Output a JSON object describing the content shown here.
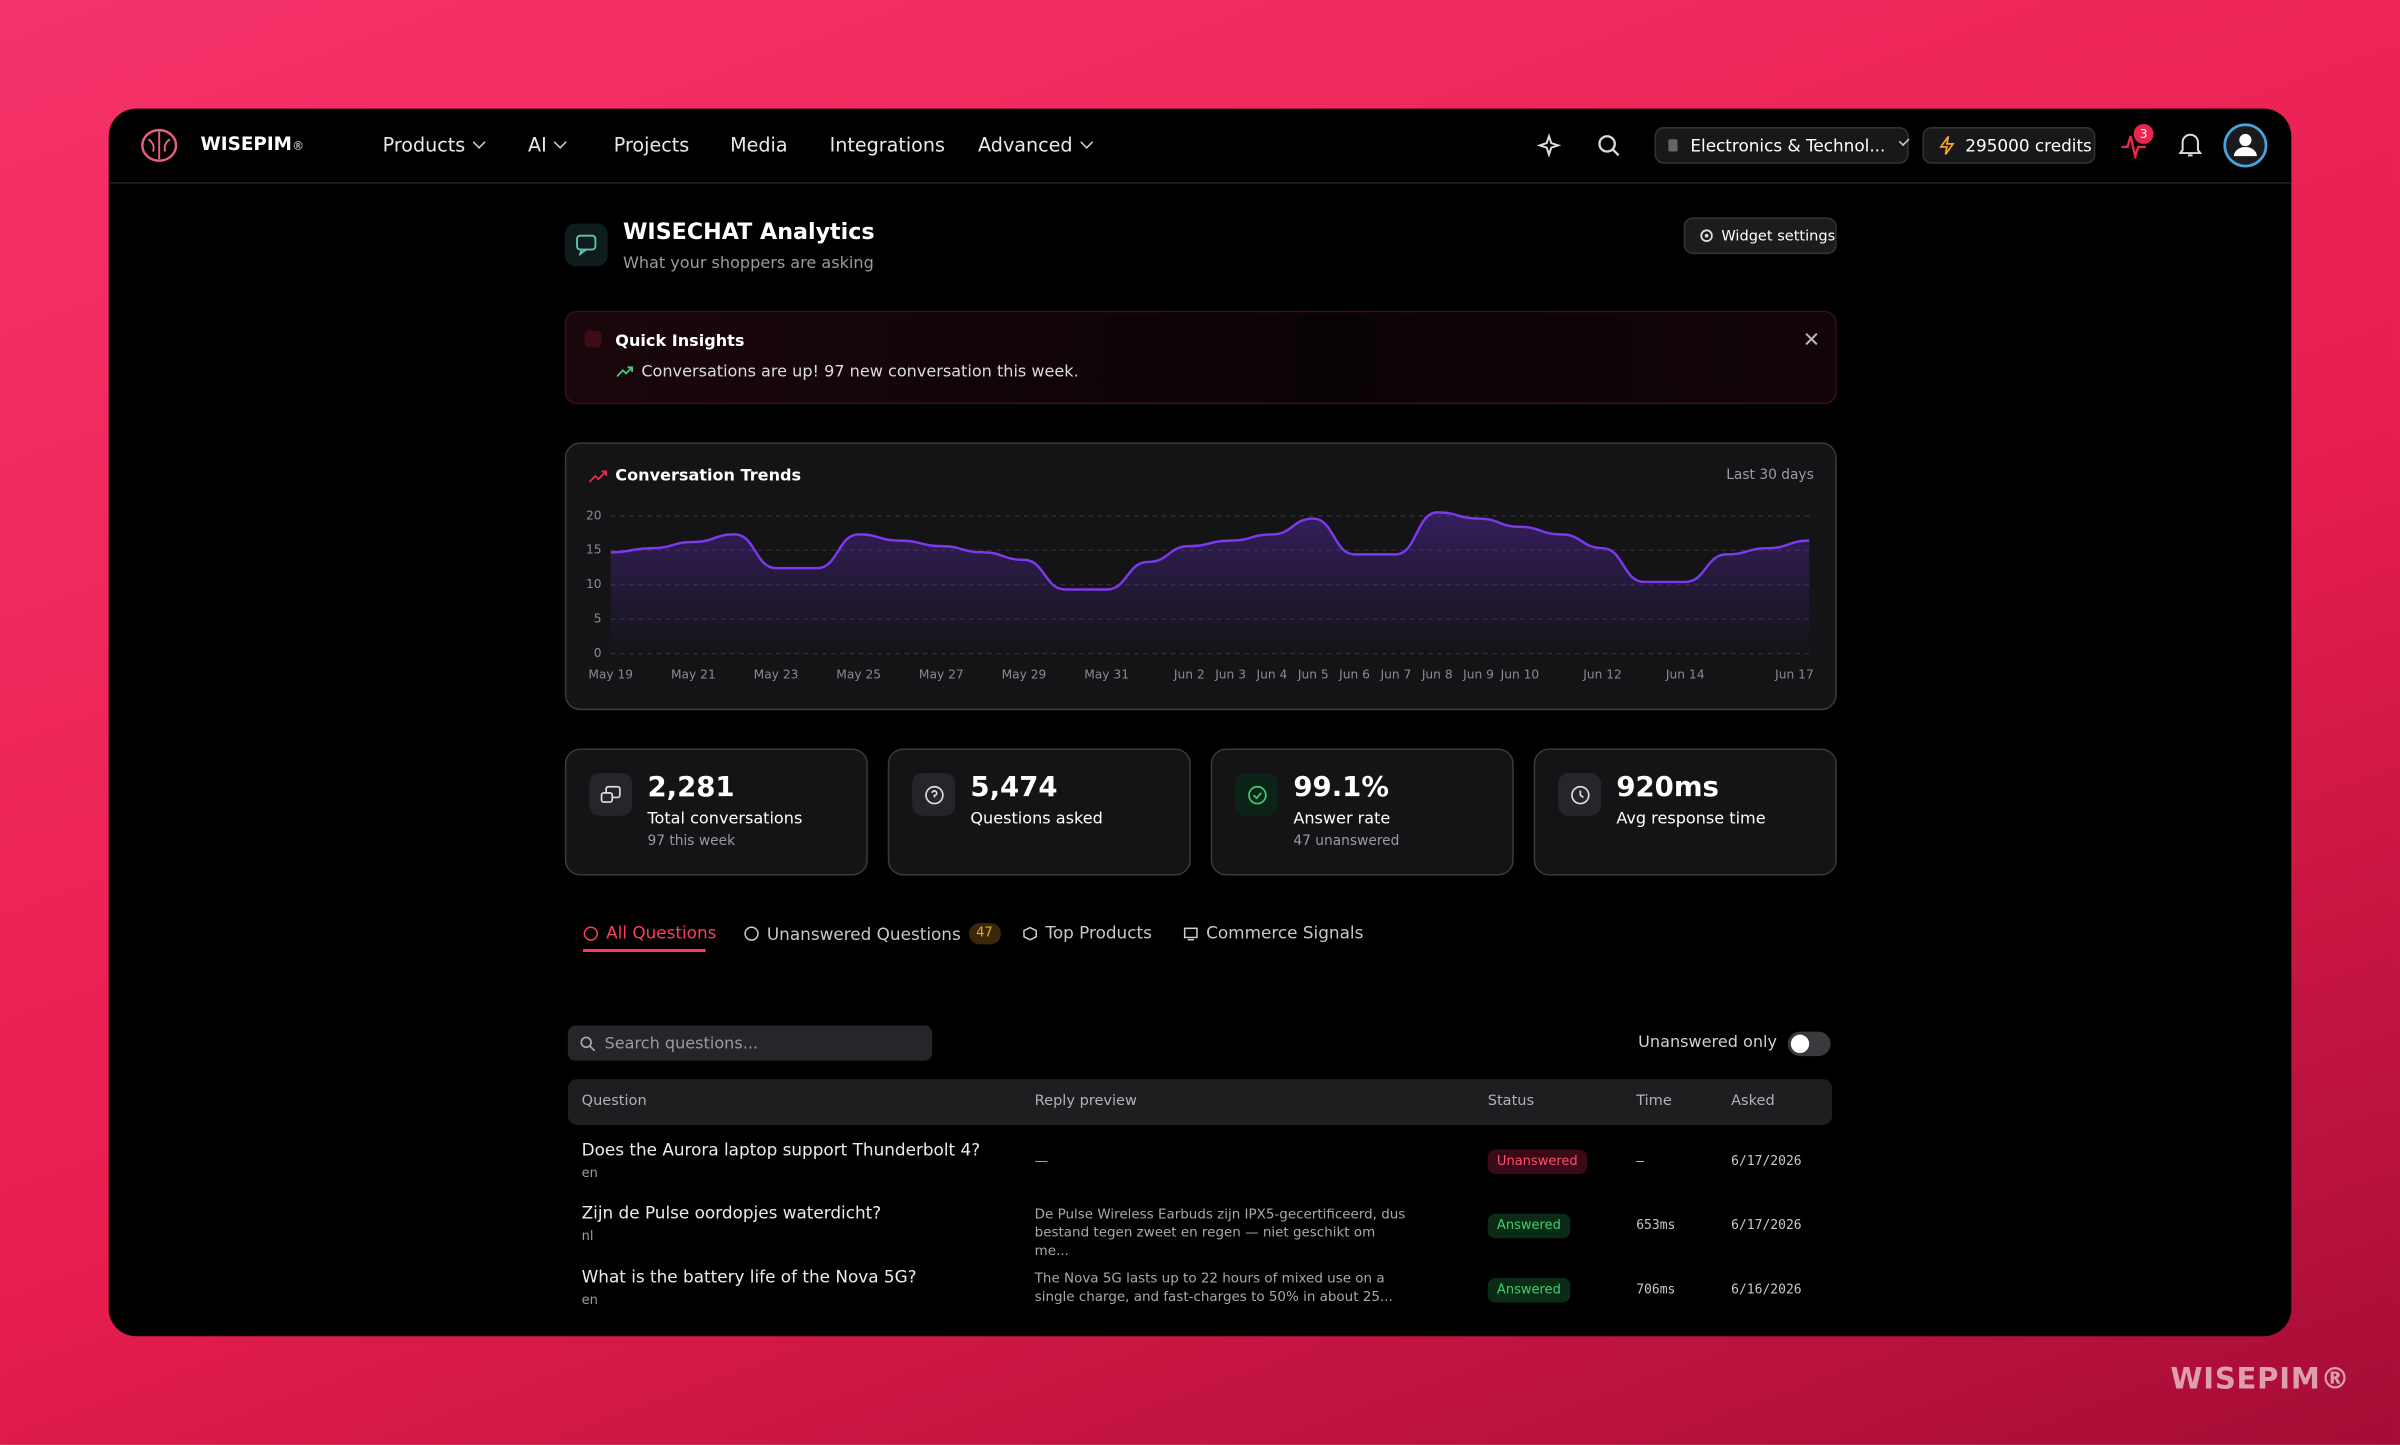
{
  "nav": {
    "brand": "WISEPIM",
    "brand_mark": "®",
    "items": [
      "Products",
      "AI",
      "Projects",
      "Media",
      "Integrations",
      "Advanced"
    ],
    "workspace": "Electronics & Technol...",
    "credits": "295000 credits",
    "notifications": 3
  },
  "header": {
    "title": "WISECHAT Analytics",
    "subtitle": "What your shoppers are asking",
    "settings": "Widget settings"
  },
  "insights": {
    "title": "Quick Insights",
    "text": "Conversations are up! 97 new conversation this week."
  },
  "chart_data": {
    "type": "line",
    "title": "Conversation Trends",
    "range_label": "Last 30 days",
    "categories": [
      "May 19",
      null,
      "May 21",
      null,
      "May 23",
      null,
      "May 25",
      null,
      "May 27",
      null,
      "May 29",
      null,
      "May 31",
      null,
      "Jun 2",
      "Jun 3",
      "Jun 4",
      "Jun 5",
      "Jun 6",
      "Jun 7",
      "Jun 8",
      "Jun 9",
      "Jun 10",
      null,
      "Jun 12",
      null,
      "Jun 14",
      null,
      null,
      "Jun 17"
    ],
    "values": [
      14.7,
      15.3,
      16.2,
      17.3,
      12.4,
      12.4,
      17.3,
      16.4,
      15.6,
      14.7,
      13.6,
      9.3,
      9.3,
      13.3,
      15.6,
      16.4,
      17.3,
      19.6,
      14.4,
      14.4,
      20.5,
      19.6,
      18.4,
      17.3,
      15.3,
      10.4,
      10.4,
      14.4,
      15.3,
      16.4
    ],
    "color": "#7c3aed",
    "ylim": [
      0,
      20
    ],
    "yticks": [
      0,
      5,
      10,
      15,
      20
    ],
    "grid": true
  },
  "stats": [
    {
      "value": "2,281",
      "label": "Total conversations",
      "note": "97 this week"
    },
    {
      "value": "5,474",
      "label": "Questions asked"
    },
    {
      "value": "99.1%",
      "label": "Answer rate",
      "note": "47 unanswered"
    },
    {
      "value": "920ms",
      "label": "Avg response time"
    }
  ],
  "tabs": [
    {
      "label": "All Questions"
    },
    {
      "label": "Unanswered Questions",
      "count": 47
    },
    {
      "label": "Top Products"
    },
    {
      "label": "Commerce Signals"
    }
  ],
  "search_placeholder": "Search questions...",
  "toggle_label": "Unanswered only",
  "table": {
    "columns": [
      "Question",
      "Reply preview",
      "Status",
      "Time",
      "Asked"
    ],
    "rows": [
      {
        "question": "Does the Aurora laptop support Thunderbolt 4?",
        "lang": "en",
        "reply": "—",
        "status": "Unanswered",
        "time": "—",
        "asked": "6/17/2026"
      },
      {
        "question": "Zijn de Pulse oordopjes waterdicht?",
        "lang": "nl",
        "reply": "De Pulse Wireless Earbuds zijn IPX5-gecertificeerd, dus bestand tegen zweet en regen — niet geschikt om me...",
        "status": "Answered",
        "time": "653ms",
        "asked": "6/17/2026"
      },
      {
        "question": "What is the battery life of the Nova 5G?",
        "lang": "en",
        "reply": "The Nova 5G lasts up to 22 hours of mixed use on a single charge, and fast-charges to 50% in about 25...",
        "status": "Answered",
        "time": "706ms",
        "asked": "6/16/2026"
      }
    ]
  },
  "watermark": "WISEPIM®"
}
